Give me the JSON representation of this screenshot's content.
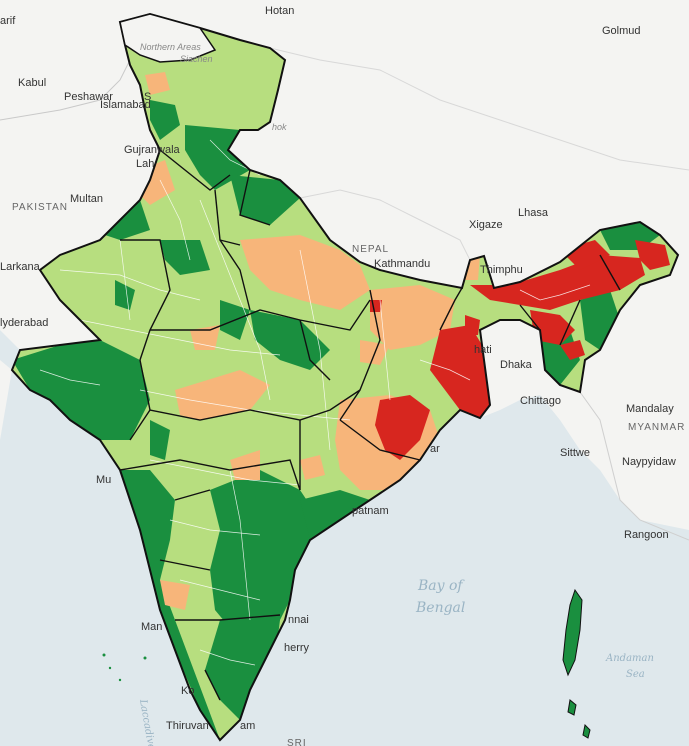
{
  "colors": {
    "water": "#dfe8ec",
    "land": "#f4f4f2",
    "dark_green": "#1a8f3f",
    "light_green": "#b7de7f",
    "orange": "#f7b57a",
    "red": "#d7261f",
    "border": "#111111",
    "district": "#ffffff"
  },
  "labels": {
    "hotan": "Hotan",
    "golmud": "Golmud",
    "kabul": "Kabul",
    "peshawar": "Peshawar",
    "islamabad": "Islamabad",
    "gujranwala": "Gujranwala",
    "lahore": "Lah",
    "multan": "Multan",
    "pakistan": "PAKISTAN",
    "karkana": "Larkana",
    "hyderabad": "lyderabad",
    "northern_areas": "Northern Areas",
    "siachen": "Siachen",
    "aksai": "hok",
    "xigaze": "Xigaze",
    "lhasa": "Lhasa",
    "nepal": "NEPAL",
    "kathmandu": "Kathmandu",
    "thimphu": "Thimphu",
    "dhaka": "Dhaka",
    "chittagong": "Chittago",
    "mandalay": "Mandalay",
    "myanmar": "MYANMAR",
    "sittwe": "Sittwe",
    "naypyidaw": "Naypyidaw",
    "rangoon": "Rangoon",
    "bay_of": "Bay of",
    "bengal": "Bengal",
    "andaman": "Andaman",
    "sea": "Sea",
    "mumbai": "Mu",
    "visakhapatnam": "patnam",
    "chennai": "nnai",
    "puducherry": "herry",
    "mangalore": "Man",
    "kochi": "Ko",
    "thiruvananthapuram": "Thiruvan",
    "am": "am",
    "sri": "SRI",
    "arif": "arif",
    "nahi": "hati",
    "ar": "ar",
    "srinagar": "S",
    "laccadive": "Laccadive"
  }
}
